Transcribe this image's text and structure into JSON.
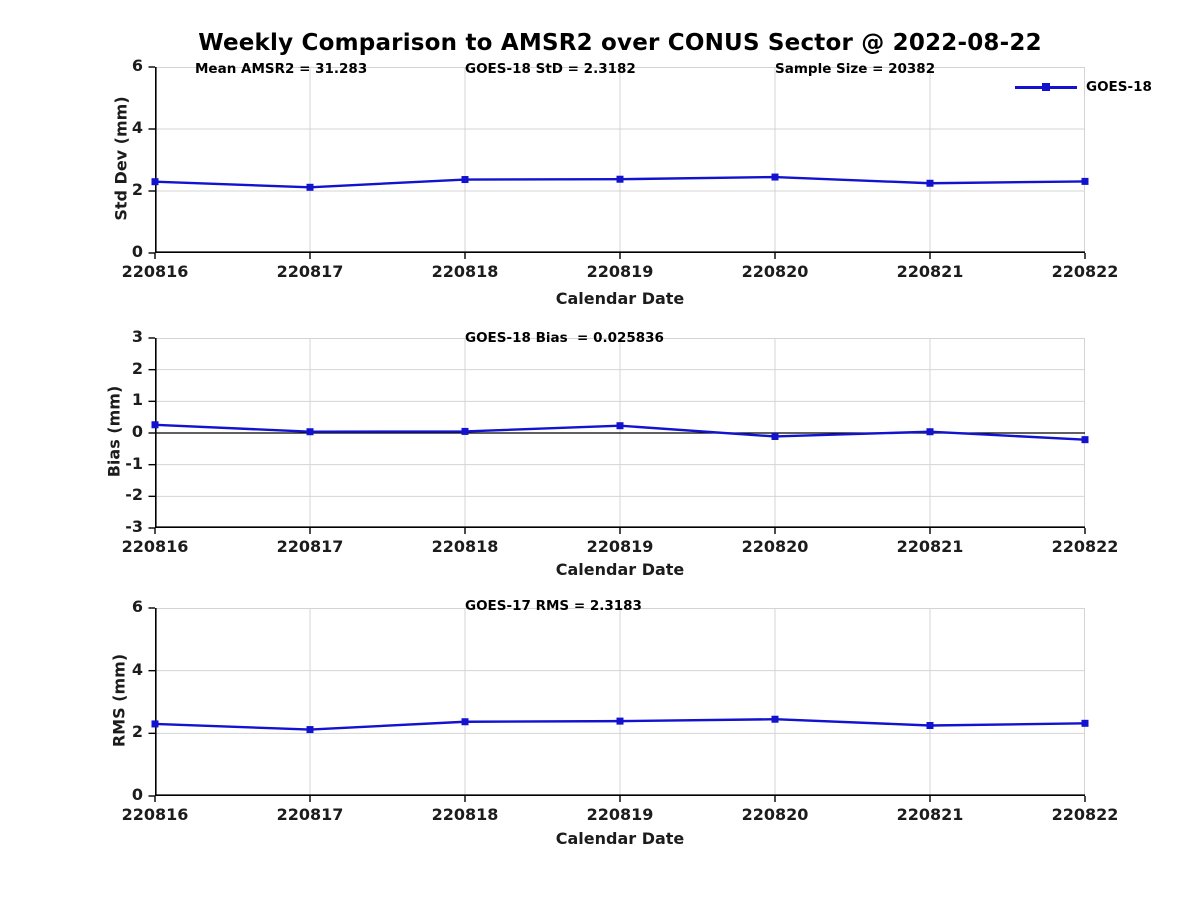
{
  "title": "Weekly Comparison to AMSR2 over CONUS Sector @ 2022-08-22",
  "legend": {
    "label": "GOES-18"
  },
  "colors": {
    "line": "#1212cf",
    "marker": "#1212cf",
    "grid": "#d4d4d4",
    "axis": "#000000",
    "zero_line": "#000000",
    "tick_text": "#1c1c1c"
  },
  "chart_data": [
    {
      "type": "line",
      "ylabel": "Std Dev (mm)",
      "xlabel": "Calendar Date",
      "categories": [
        "220816",
        "220817",
        "220818",
        "220819",
        "220820",
        "220821",
        "220822"
      ],
      "values": [
        2.3,
        2.12,
        2.37,
        2.38,
        2.45,
        2.25,
        2.31
      ],
      "ylim": [
        0,
        6
      ],
      "yticks": [
        0,
        2,
        4,
        6
      ],
      "grid": true,
      "legend_entry": "GOES-18",
      "legend_position": "top-right-outside",
      "annotations": [
        {
          "text": "Mean AMSR2 = 31.283"
        },
        {
          "text": "GOES-18 StD = 2.3182"
        },
        {
          "text": "Sample Size = 20382"
        }
      ]
    },
    {
      "type": "line",
      "ylabel": "Bias (mm)",
      "xlabel": "Calendar Date",
      "categories": [
        "220816",
        "220817",
        "220818",
        "220819",
        "220820",
        "220821",
        "220822"
      ],
      "values": [
        0.26,
        0.04,
        0.05,
        0.23,
        -0.11,
        0.04,
        -0.21
      ],
      "ylim": [
        -3,
        3
      ],
      "yticks": [
        3,
        2,
        1,
        0,
        -1,
        -2,
        -3
      ],
      "grid": true,
      "zero_line": true,
      "annotations": [
        {
          "text": "GOES-18 Bias  = 0.025836"
        }
      ]
    },
    {
      "type": "line",
      "ylabel": "RMS (mm)",
      "xlabel": "Calendar Date",
      "categories": [
        "220816",
        "220817",
        "220818",
        "220819",
        "220820",
        "220821",
        "220822"
      ],
      "values": [
        2.3,
        2.12,
        2.37,
        2.39,
        2.45,
        2.25,
        2.32
      ],
      "ylim": [
        0,
        6
      ],
      "yticks": [
        0,
        2,
        4,
        6
      ],
      "grid": true,
      "annotations": [
        {
          "text": "GOES-17 RMS = 2.3183"
        }
      ]
    }
  ]
}
